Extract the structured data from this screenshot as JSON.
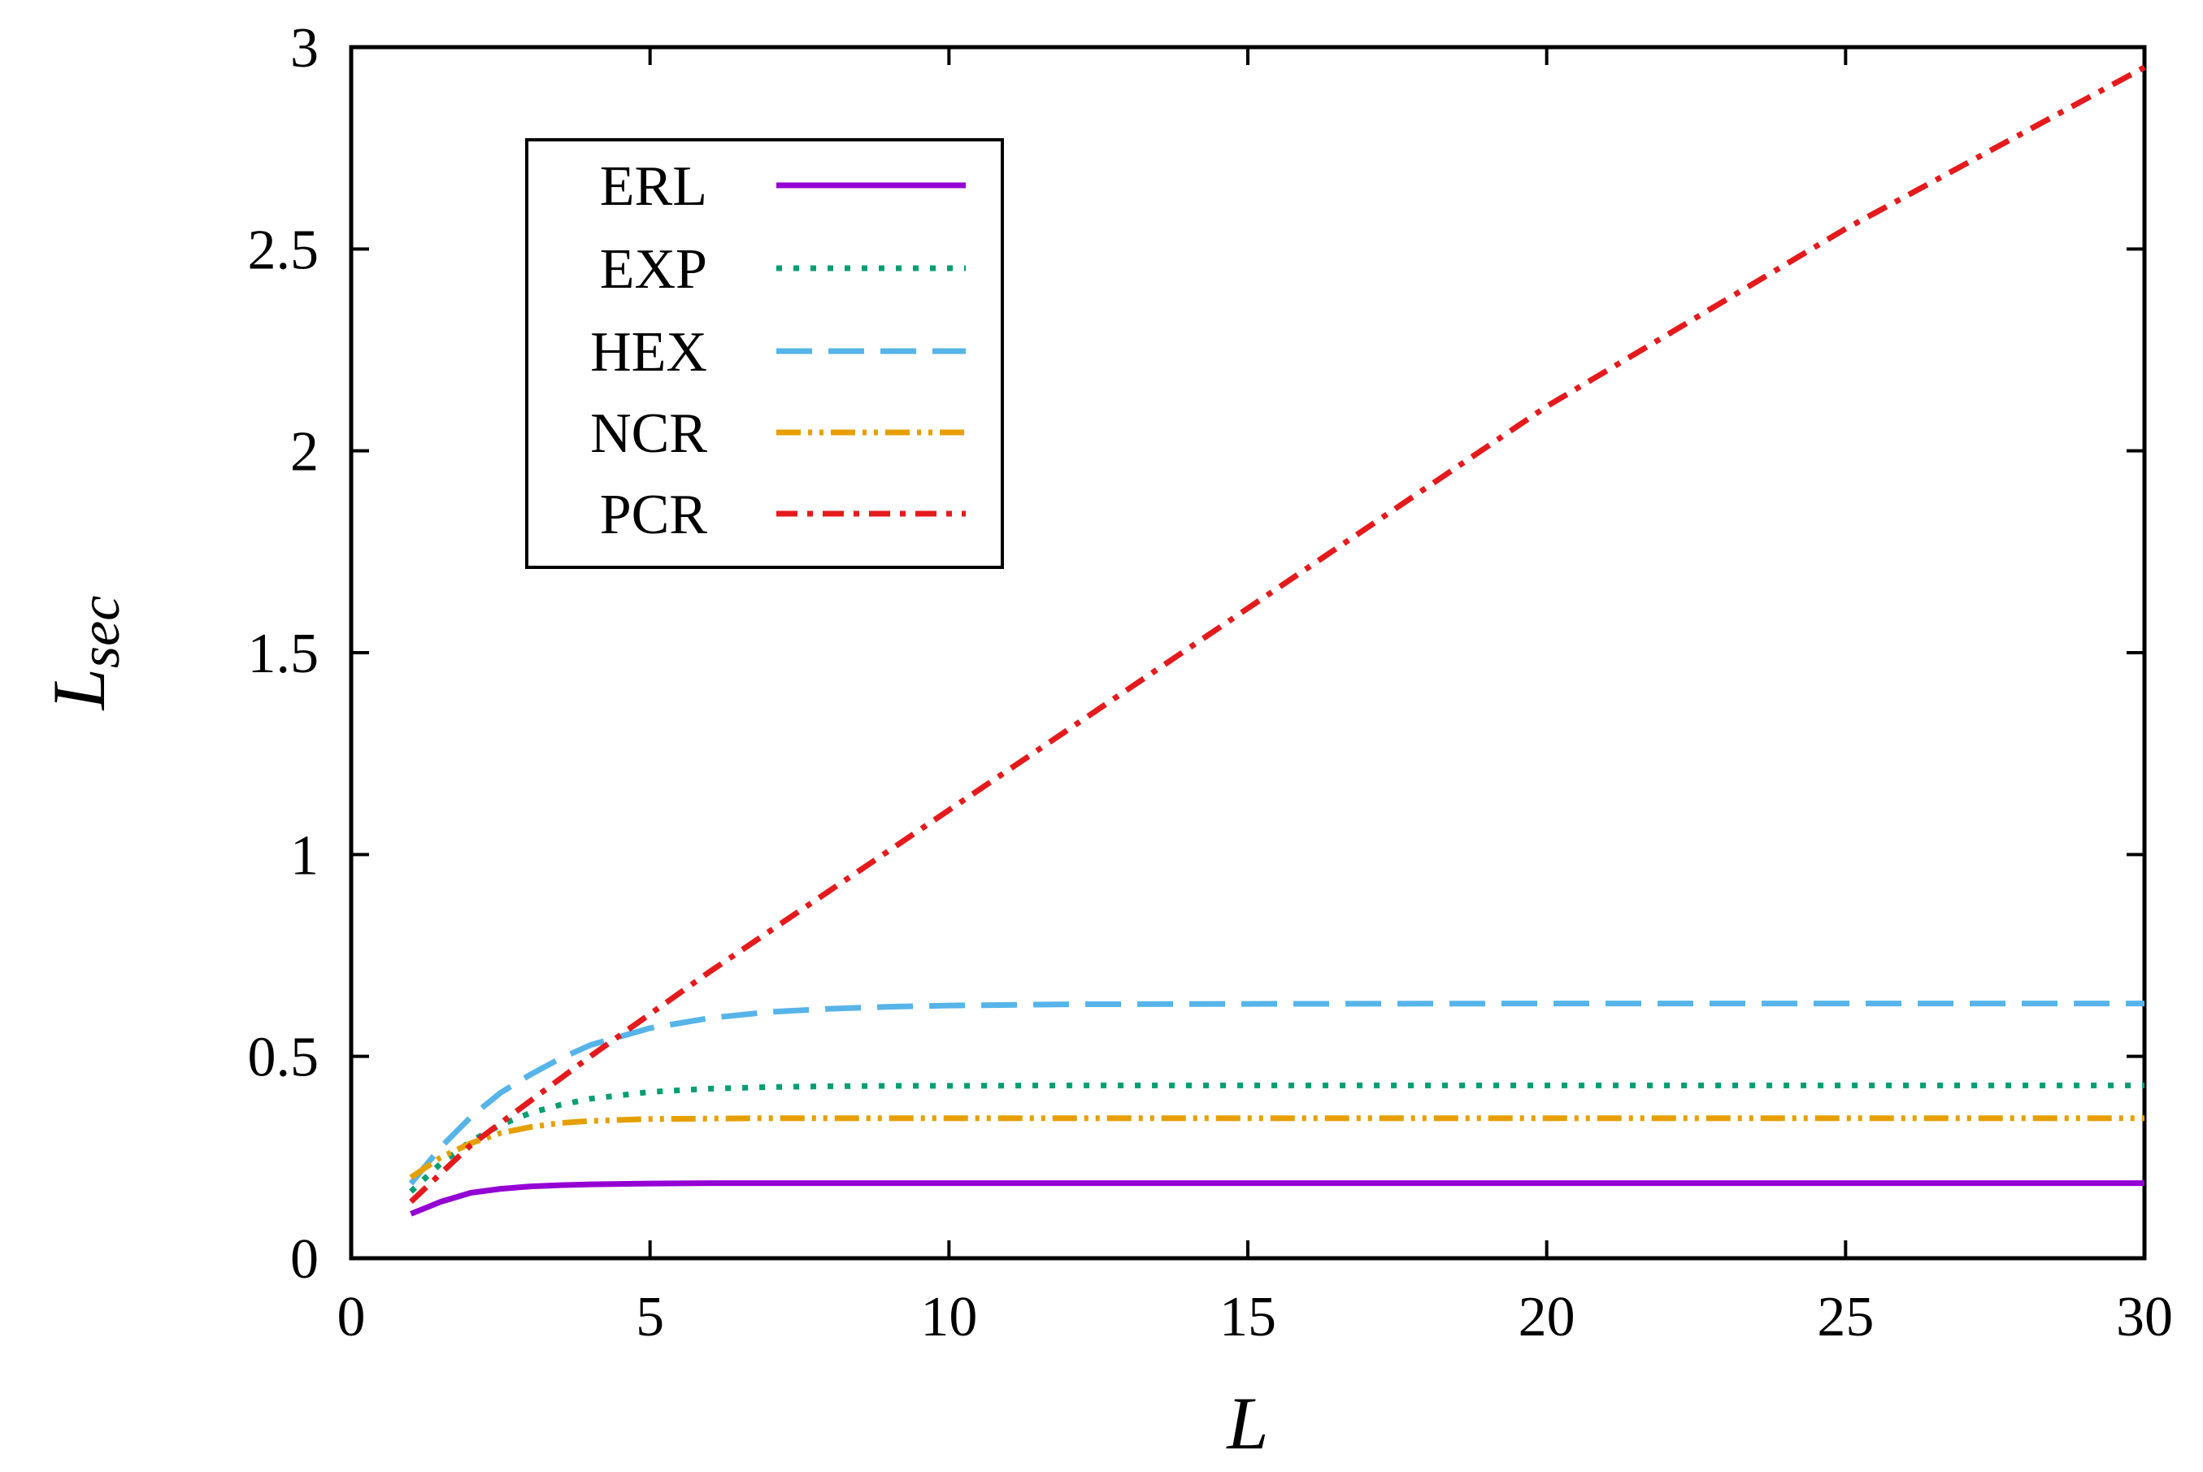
{
  "chart_data": {
    "type": "line",
    "title": "",
    "xlabel": "L",
    "ylabel": {
      "base": "L",
      "subscript": "sec"
    },
    "xlim": [
      0,
      30
    ],
    "ylim": [
      0,
      3
    ],
    "xticks": [
      0,
      5,
      10,
      15,
      20,
      25,
      30
    ],
    "yticks": [
      0,
      0.5,
      1,
      1.5,
      2,
      2.5,
      3
    ],
    "xtick_labels": [
      "0",
      "5",
      "10",
      "15",
      "20",
      "25",
      "30"
    ],
    "ytick_labels": [
      "0",
      "0.5",
      "1",
      "1.5",
      "2",
      "2.5",
      "3"
    ],
    "grid": false,
    "legend_position": "top-left",
    "x": [
      1,
      1.5,
      2,
      2.5,
      3,
      3.5,
      4,
      5,
      6,
      7,
      8,
      9,
      10,
      12,
      15,
      20,
      25,
      30
    ],
    "series": [
      {
        "name": "ERL",
        "color": "#9400d3",
        "style": "solid",
        "values": [
          0.11,
          0.14,
          0.162,
          0.172,
          0.178,
          0.181,
          0.183,
          0.185,
          0.186,
          0.186,
          0.186,
          0.186,
          0.186,
          0.186,
          0.186,
          0.186,
          0.186,
          0.186
        ]
      },
      {
        "name": "EXP",
        "color": "#009e73",
        "style": "dotted",
        "values": [
          0.165,
          0.235,
          0.29,
          0.33,
          0.36,
          0.38,
          0.395,
          0.412,
          0.42,
          0.424,
          0.426,
          0.427,
          0.427,
          0.428,
          0.428,
          0.428,
          0.428,
          0.428
        ]
      },
      {
        "name": "HEX",
        "color": "#56b4e9",
        "style": "dashed",
        "values": [
          0.185,
          0.275,
          0.35,
          0.41,
          0.455,
          0.495,
          0.528,
          0.57,
          0.595,
          0.61,
          0.618,
          0.623,
          0.626,
          0.629,
          0.63,
          0.631,
          0.631,
          0.631
        ]
      },
      {
        "name": "NCR",
        "color": "#e69f00",
        "style": "dash-dot-dot",
        "values": [
          0.2,
          0.25,
          0.285,
          0.31,
          0.325,
          0.335,
          0.34,
          0.345,
          0.346,
          0.347,
          0.347,
          0.347,
          0.347,
          0.347,
          0.347,
          0.347,
          0.347,
          0.347
        ]
      },
      {
        "name": "PCR",
        "color": "#e41a1c",
        "style": "dash-dot",
        "values": [
          0.14,
          0.21,
          0.28,
          0.335,
          0.39,
          0.445,
          0.5,
          0.605,
          0.71,
          0.81,
          0.91,
          1.01,
          1.11,
          1.31,
          1.61,
          2.11,
          2.55,
          2.95
        ]
      }
    ]
  }
}
